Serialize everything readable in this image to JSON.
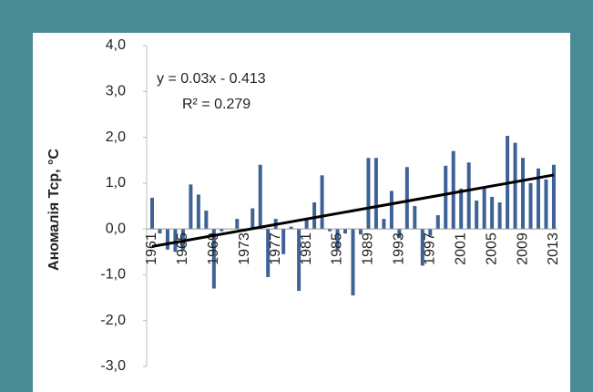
{
  "chart_data": {
    "type": "bar",
    "y_label": "Аномалія Тср, °C",
    "categories": [
      "1961",
      null,
      null,
      null,
      "1965",
      null,
      null,
      null,
      "1969",
      null,
      null,
      null,
      "1973",
      null,
      null,
      null,
      "1977",
      null,
      null,
      null,
      "1981",
      null,
      null,
      null,
      "1985",
      null,
      null,
      null,
      "1989",
      null,
      null,
      null,
      "1993",
      null,
      null,
      null,
      "1997",
      null,
      null,
      null,
      "2001",
      null,
      null,
      null,
      "2005",
      null,
      null,
      null,
      "2009",
      null,
      null,
      null,
      "2013"
    ],
    "values": [
      0.68,
      -0.1,
      -0.45,
      -0.5,
      -0.45,
      0.97,
      0.75,
      0.4,
      -1.3,
      -0.05,
      0.0,
      0.22,
      -0.05,
      0.45,
      1.4,
      -1.05,
      0.22,
      -0.55,
      0.05,
      -1.35,
      0.2,
      0.58,
      1.17,
      -0.05,
      -0.45,
      -0.1,
      -1.45,
      -0.12,
      1.55,
      1.55,
      0.22,
      0.83,
      -0.2,
      1.35,
      0.5,
      -0.8,
      -0.15,
      0.3,
      1.38,
      1.7,
      0.88,
      1.45,
      0.62,
      0.9,
      0.7,
      0.58,
      2.03,
      1.88,
      1.55,
      1.0,
      1.32,
      1.08,
      1.4
    ],
    "color": "#3f6296",
    "ylim": [
      -3,
      4
    ],
    "yticks": [
      {
        "value": -3,
        "label": "-3,0"
      },
      {
        "value": -2,
        "label": "-2,0"
      },
      {
        "value": -1,
        "label": "-1,0"
      },
      {
        "value": 0,
        "label": "0,0"
      },
      {
        "value": 1,
        "label": "1,0"
      },
      {
        "value": 2,
        "label": "2,0"
      },
      {
        "value": 3,
        "label": "3,0"
      },
      {
        "value": 4,
        "label": "4,0"
      }
    ],
    "trendline": {
      "label": "y = 0.03x - 0.413",
      "r2_label": "R² = 0.279",
      "slope": 0.03,
      "intercept": -0.413,
      "color": "#000000"
    }
  }
}
